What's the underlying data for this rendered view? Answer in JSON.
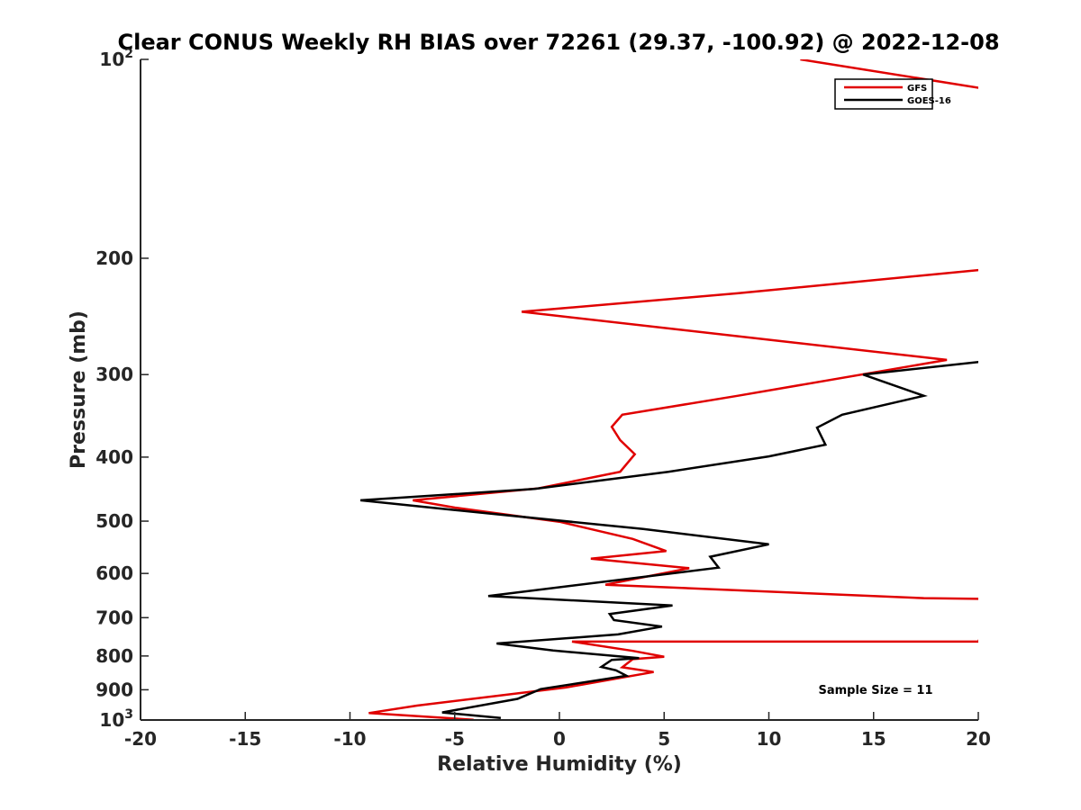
{
  "chart_data": {
    "type": "line",
    "title": "Clear CONUS Weekly RH BIAS over 72261 (29.37, -100.92) @ 2022-12-08",
    "xlabel": "Relative Humidity (%)",
    "ylabel": "Pressure (mb)",
    "xlim": [
      -20,
      20
    ],
    "ylim": [
      100,
      1000
    ],
    "y_scale": "log",
    "y_reversed": true,
    "grid": false,
    "legend_position": "top-right",
    "x_ticks": [
      "-20",
      "-15",
      "-10",
      "-5",
      "0",
      "5",
      "10",
      "15",
      "20"
    ],
    "y_ticks": [
      {
        "value": 100,
        "base": "10",
        "exp": "2"
      },
      {
        "value": 200,
        "label": "200"
      },
      {
        "value": 300,
        "label": "300"
      },
      {
        "value": 400,
        "label": "400"
      },
      {
        "value": 500,
        "label": "500"
      },
      {
        "value": 600,
        "label": "600"
      },
      {
        "value": 700,
        "label": "700"
      },
      {
        "value": 800,
        "label": "800"
      },
      {
        "value": 900,
        "label": "900"
      },
      {
        "value": 1000,
        "base": "10",
        "exp": "3"
      }
    ],
    "annotation": "Sample Size = 11",
    "series": [
      {
        "name": "GFS",
        "color": "#e00000",
        "points": [
          [
            11.5,
            100
          ],
          [
            20.5,
            111
          ],
          [
            21.0,
            207
          ],
          [
            8.5,
            226
          ],
          [
            -1.8,
            241
          ],
          [
            18.5,
            285
          ],
          [
            8.5,
            323
          ],
          [
            3.0,
            345
          ],
          [
            2.5,
            360
          ],
          [
            2.9,
            377
          ],
          [
            3.6,
            396
          ],
          [
            2.9,
            421
          ],
          [
            -1.0,
            446
          ],
          [
            -7.0,
            465
          ],
          [
            -5.0,
            477
          ],
          [
            0.0,
            501
          ],
          [
            3.5,
            532
          ],
          [
            5.1,
            555
          ],
          [
            1.5,
            570
          ],
          [
            6.2,
            589
          ],
          [
            2.2,
            624
          ],
          [
            17.4,
            654
          ],
          [
            21.0,
            656
          ],
          [
            20.0,
            761
          ],
          [
            0.6,
            761
          ],
          [
            3.5,
            786
          ],
          [
            5.0,
            802
          ],
          [
            3.5,
            809
          ],
          [
            3.0,
            832
          ],
          [
            4.5,
            846
          ],
          [
            0.3,
            893
          ],
          [
            -6.8,
            951
          ],
          [
            -9.1,
            976
          ],
          [
            -4.1,
            999
          ]
        ]
      },
      {
        "name": "GOES-16",
        "color": "#000000",
        "points": [
          [
            20.5,
            286
          ],
          [
            14.5,
            300
          ],
          [
            17.4,
            323
          ],
          [
            13.5,
            345
          ],
          [
            12.3,
            361
          ],
          [
            12.7,
            383
          ],
          [
            10.0,
            399
          ],
          [
            5.2,
            421
          ],
          [
            -1.2,
            447
          ],
          [
            -9.5,
            465
          ],
          [
            -5.3,
            480
          ],
          [
            4.0,
            514
          ],
          [
            10.0,
            542
          ],
          [
            7.2,
            566
          ],
          [
            7.6,
            588
          ],
          [
            -3.4,
            649
          ],
          [
            5.4,
            671
          ],
          [
            2.4,
            691
          ],
          [
            2.6,
            706
          ],
          [
            4.9,
            722
          ],
          [
            2.8,
            742
          ],
          [
            -3.0,
            766
          ],
          [
            -0.3,
            785
          ],
          [
            3.8,
            806
          ],
          [
            2.5,
            811
          ],
          [
            2.0,
            831
          ],
          [
            2.7,
            841
          ],
          [
            3.2,
            857
          ],
          [
            -0.9,
            898
          ],
          [
            -2.0,
            929
          ],
          [
            -5.6,
            974
          ],
          [
            -2.8,
            993
          ]
        ]
      }
    ]
  }
}
